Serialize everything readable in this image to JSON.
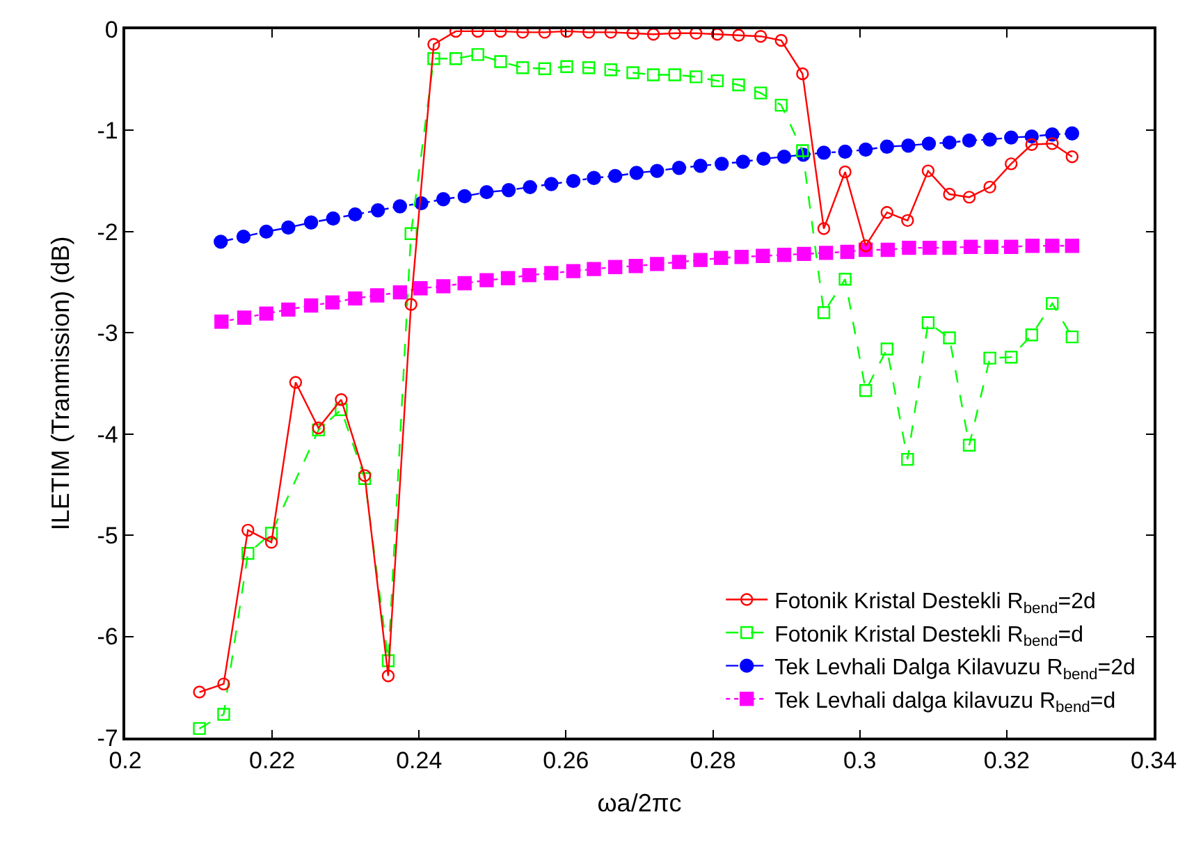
{
  "chart_data": {
    "type": "line",
    "xlabel": "ωa/2πc",
    "ylabel": "ILETIM (Tranmission) (dB)",
    "xlim": [
      0.2,
      0.34
    ],
    "xticks": [
      0.2,
      0.22,
      0.24,
      0.26,
      0.28,
      0.3,
      0.32,
      0.34
    ],
    "ylim": [
      -7,
      0
    ],
    "yticks": [
      -7,
      -6,
      -5,
      -4,
      -3,
      -2,
      -1,
      0
    ],
    "legend": "bottom right",
    "series": [
      {
        "name": "Fotonik Kristal Destekli R$_{bend}$=2d",
        "color": "#ff0000",
        "marker": "circle-open",
        "line_style": "solid",
        "x": [
          0.2101,
          0.2134,
          0.2167,
          0.2199,
          0.2232,
          0.2263,
          0.2294,
          0.2326,
          0.2358,
          0.2389,
          0.242,
          0.245,
          0.248,
          0.2511,
          0.2541,
          0.2571,
          0.2601,
          0.2631,
          0.2661,
          0.2691,
          0.2719,
          0.2748,
          0.2777,
          0.2806,
          0.2835,
          0.2865,
          0.2893,
          0.2922,
          0.2951,
          0.298,
          0.3008,
          0.3037,
          0.3065,
          0.3093,
          0.3122,
          0.3149,
          0.3177,
          0.3206,
          0.3234,
          0.3262,
          0.3289
        ],
        "values": [
          -6.55,
          -6.47,
          -4.95,
          -5.07,
          -3.49,
          -3.94,
          -3.66,
          -4.41,
          -6.39,
          -2.72,
          -0.15,
          -0.02,
          -0.02,
          -0.02,
          -0.03,
          -0.03,
          -0.02,
          -0.03,
          -0.03,
          -0.04,
          -0.05,
          -0.04,
          -0.04,
          -0.05,
          -0.06,
          -0.07,
          -0.11,
          -0.44,
          -1.97,
          -1.41,
          -2.14,
          -1.81,
          -1.89,
          -1.4,
          -1.63,
          -1.66,
          -1.56,
          -1.33,
          -1.14,
          -1.13,
          -1.26
        ]
      },
      {
        "name": "Fotonik Kristal Destekli R$_{bend}$=d",
        "color": "#00ff00",
        "marker": "square-open",
        "line_style": "dashed",
        "x": [
          0.2101,
          0.2134,
          0.2167,
          0.2199,
          0.2263,
          0.2294,
          0.2326,
          0.2358,
          0.2389,
          0.242,
          0.245,
          0.248,
          0.2511,
          0.2541,
          0.2571,
          0.2601,
          0.2631,
          0.2661,
          0.2691,
          0.2719,
          0.2748,
          0.2777,
          0.2806,
          0.2835,
          0.2865,
          0.2893,
          0.2922,
          0.2951,
          0.298,
          0.3008,
          0.3037,
          0.3065,
          0.3093,
          0.3122,
          0.3149,
          0.3177,
          0.3206,
          0.3234,
          0.3262,
          0.3289
        ],
        "values": [
          -6.91,
          -6.77,
          -5.18,
          -4.98,
          -3.96,
          -3.76,
          -4.44,
          -6.24,
          -2.02,
          -0.29,
          -0.29,
          -0.25,
          -0.32,
          -0.38,
          -0.39,
          -0.37,
          -0.38,
          -0.4,
          -0.43,
          -0.45,
          -0.45,
          -0.47,
          -0.51,
          -0.55,
          -0.63,
          -0.75,
          -1.2,
          -2.8,
          -2.47,
          -3.57,
          -3.16,
          -4.25,
          -2.9,
          -3.05,
          -4.11,
          -3.25,
          -3.24,
          -3.02,
          -2.71,
          -3.04
        ]
      },
      {
        "name": "Tek Levhali Dalga Kilavuzu R$_{bend}$=2d",
        "color": "#0000ff",
        "marker": "circle",
        "line_style": "dashdot",
        "x": [
          0.213,
          0.2161,
          0.2192,
          0.2222,
          0.2253,
          0.2283,
          0.2313,
          0.2344,
          0.2374,
          0.2403,
          0.2433,
          0.2462,
          0.2492,
          0.2522,
          0.2551,
          0.258,
          0.261,
          0.2638,
          0.2667,
          0.2696,
          0.2724,
          0.2754,
          0.2783,
          0.2812,
          0.2841,
          0.2869,
          0.2897,
          0.2923,
          0.2951,
          0.298,
          0.3008,
          0.3037,
          0.3066,
          0.3094,
          0.3122,
          0.3149,
          0.3177,
          0.3206,
          0.3234,
          0.3262,
          0.3289
        ],
        "values": [
          -2.1,
          -2.05,
          -2.0,
          -1.96,
          -1.91,
          -1.87,
          -1.83,
          -1.79,
          -1.75,
          -1.72,
          -1.68,
          -1.65,
          -1.61,
          -1.59,
          -1.56,
          -1.53,
          -1.5,
          -1.47,
          -1.45,
          -1.42,
          -1.4,
          -1.37,
          -1.35,
          -1.33,
          -1.31,
          -1.28,
          -1.26,
          -1.24,
          -1.22,
          -1.21,
          -1.19,
          -1.16,
          -1.15,
          -1.13,
          -1.12,
          -1.1,
          -1.09,
          -1.07,
          -1.06,
          -1.04,
          -1.03
        ]
      },
      {
        "name": "Tek Levhali dalga kilavuzu R$_{bend}$=d",
        "color": "#ff00ff",
        "marker": "square",
        "line_style": "dotted",
        "x": [
          0.2131,
          0.2162,
          0.2192,
          0.2222,
          0.2253,
          0.2282,
          0.2313,
          0.2343,
          0.2374,
          0.2402,
          0.2433,
          0.2462,
          0.2492,
          0.2521,
          0.255,
          0.258,
          0.261,
          0.2638,
          0.2667,
          0.2695,
          0.2724,
          0.2754,
          0.2783,
          0.2811,
          0.2839,
          0.2868,
          0.2897,
          0.2924,
          0.2954,
          0.2983,
          0.3008,
          0.3038,
          0.3067,
          0.3095,
          0.3122,
          0.3151,
          0.3179,
          0.3206,
          0.3235,
          0.3262,
          0.3289
        ],
        "values": [
          -2.89,
          -2.85,
          -2.81,
          -2.77,
          -2.73,
          -2.7,
          -2.66,
          -2.63,
          -2.6,
          -2.56,
          -2.54,
          -2.51,
          -2.48,
          -2.46,
          -2.43,
          -2.41,
          -2.39,
          -2.37,
          -2.35,
          -2.34,
          -2.32,
          -2.3,
          -2.28,
          -2.26,
          -2.25,
          -2.24,
          -2.23,
          -2.22,
          -2.21,
          -2.2,
          -2.18,
          -2.18,
          -2.16,
          -2.16,
          -2.16,
          -2.15,
          -2.15,
          -2.15,
          -2.14,
          -2.14,
          -2.14
        ]
      }
    ]
  }
}
